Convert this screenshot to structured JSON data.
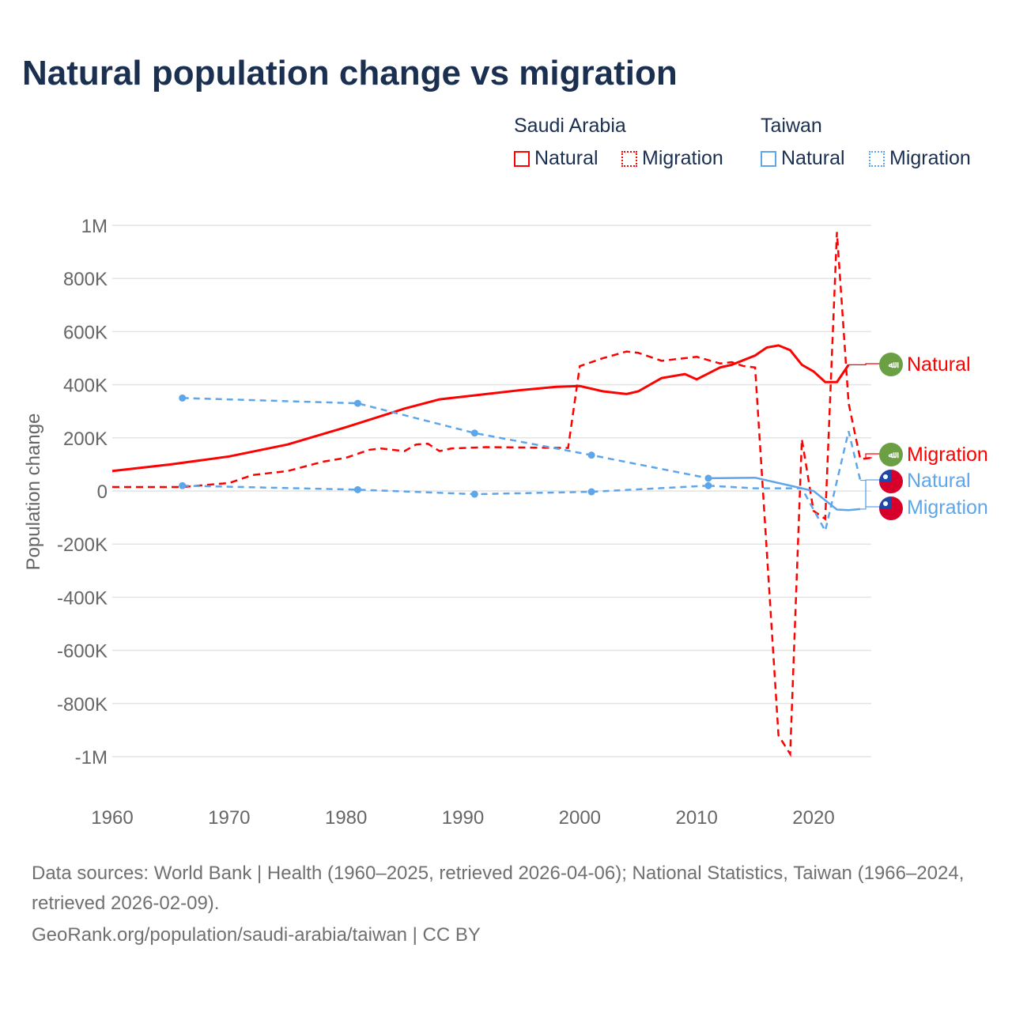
{
  "title": "Natural population change vs migration",
  "legend": {
    "groups": [
      {
        "name": "Saudi Arabia",
        "color": "#ff0000",
        "items": [
          "Natural",
          "Migration"
        ]
      },
      {
        "name": "Taiwan",
        "color": "#5ea6ea",
        "items": [
          "Natural",
          "Migration"
        ]
      }
    ]
  },
  "footer": {
    "sources": "Data sources: World Bank | Health (1960–2025, retrieved 2026-04-06); National Statistics, Taiwan (1966–2024, retrieved 2026-02-09).",
    "credit": "GeoRank.org/population/saudi-arabia/taiwan | CC BY"
  },
  "chart_data": {
    "type": "line",
    "title": "Natural population change vs migration",
    "xlabel": "",
    "ylabel": "Population change",
    "xlim": [
      1960,
      2025
    ],
    "ylim": [
      -1000000,
      1000000
    ],
    "xticks": [
      "1960",
      "1970",
      "1980",
      "1990",
      "2000",
      "2010",
      "2020"
    ],
    "yticks": [
      "1M",
      "800K",
      "600K",
      "400K",
      "200K",
      "0",
      "-200K",
      "-400K",
      "-600K",
      "-800K",
      "-1M"
    ],
    "series": [
      {
        "name": "Saudi Arabia Natural",
        "label": "Natural",
        "color": "#ff0000",
        "dash": false,
        "flag": "saudi-arabia",
        "points": [
          [
            1960,
            75000
          ],
          [
            1965,
            100000
          ],
          [
            1970,
            130000
          ],
          [
            1975,
            175000
          ],
          [
            1980,
            240000
          ],
          [
            1985,
            310000
          ],
          [
            1988,
            345000
          ],
          [
            1995,
            380000
          ],
          [
            1998,
            392000
          ],
          [
            2000,
            395000
          ],
          [
            2002,
            375000
          ],
          [
            2004,
            365000
          ],
          [
            2005,
            375000
          ],
          [
            2007,
            425000
          ],
          [
            2009,
            440000
          ],
          [
            2010,
            420000
          ],
          [
            2012,
            465000
          ],
          [
            2013,
            475000
          ],
          [
            2015,
            510000
          ],
          [
            2016,
            540000
          ],
          [
            2017,
            548000
          ],
          [
            2018,
            530000
          ],
          [
            2019,
            475000
          ],
          [
            2020,
            450000
          ],
          [
            2021,
            410000
          ],
          [
            2022,
            410000
          ],
          [
            2023,
            475000
          ]
        ]
      },
      {
        "name": "Saudi Arabia Migration",
        "label": "Migration",
        "color": "#ff0000",
        "dash": true,
        "flag": "saudi-arabia",
        "points": [
          [
            1960,
            15000
          ],
          [
            1966,
            15000
          ],
          [
            1970,
            30000
          ],
          [
            1972,
            60000
          ],
          [
            1975,
            75000
          ],
          [
            1978,
            110000
          ],
          [
            1980,
            125000
          ],
          [
            1982,
            155000
          ],
          [
            1983,
            160000
          ],
          [
            1985,
            150000
          ],
          [
            1986,
            175000
          ],
          [
            1987,
            178000
          ],
          [
            1988,
            150000
          ],
          [
            1989,
            160000
          ],
          [
            1992,
            165000
          ],
          [
            1999,
            162000
          ],
          [
            2000,
            470000
          ],
          [
            2002,
            500000
          ],
          [
            2004,
            525000
          ],
          [
            2005,
            520000
          ],
          [
            2007,
            490000
          ],
          [
            2010,
            505000
          ],
          [
            2012,
            480000
          ],
          [
            2013,
            485000
          ],
          [
            2014,
            470000
          ],
          [
            2015,
            465000
          ],
          [
            2017,
            -920000
          ],
          [
            2018,
            -990000
          ],
          [
            2019,
            195000
          ],
          [
            2020,
            -75000
          ],
          [
            2021,
            -105000
          ],
          [
            2022,
            975000
          ],
          [
            2023,
            330000
          ],
          [
            2024,
            120000
          ],
          [
            2025,
            125000
          ]
        ]
      },
      {
        "name": "Taiwan Migration",
        "label": "Migration",
        "color": "#5ea6ea",
        "dash": true,
        "flag": "taiwan",
        "points": [
          [
            1966,
            20000
          ],
          [
            1981,
            5000
          ],
          [
            1991,
            -12000
          ],
          [
            2001,
            -3000
          ],
          [
            2011,
            20000
          ],
          [
            2015,
            10000
          ],
          [
            2019,
            10000
          ],
          [
            2021,
            -150000
          ],
          [
            2023,
            225000
          ],
          [
            2024,
            40000
          ]
        ]
      },
      {
        "name": "Taiwan Natural",
        "label": "Natural",
        "color": "#5ea6ea",
        "dash": false,
        "flag": "taiwan",
        "points": [
          [
            1966,
            350000
          ],
          [
            1981,
            330000
          ],
          [
            1991,
            218000
          ],
          [
            2001,
            135000
          ],
          [
            2011,
            48000
          ],
          [
            2015,
            50000
          ],
          [
            2018,
            20000
          ],
          [
            2020,
            0
          ],
          [
            2022,
            -70000
          ],
          [
            2023,
            -72000
          ],
          [
            2024,
            -68000
          ]
        ]
      }
    ]
  }
}
